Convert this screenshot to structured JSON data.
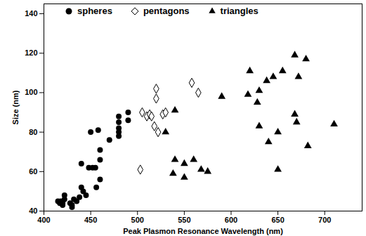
{
  "chart_data": {
    "type": "scatter",
    "x_label": "Peak Plasmon Resonance Wavelength (nm)",
    "y_label": "Size (nm)",
    "xlim": [
      400,
      740
    ],
    "xticks": [
      400,
      450,
      500,
      550,
      600,
      650,
      700
    ],
    "ylim": [
      40,
      145
    ],
    "yticks": [
      40,
      60,
      80,
      100,
      120,
      140
    ],
    "grid": false,
    "legend": "top",
    "series": [
      {
        "name": "spheres",
        "color": "#000000",
        "marker": "circle",
        "x": [
          415,
          417,
          418,
          420,
          420,
          422,
          422,
          428,
          430,
          430,
          432,
          435,
          438,
          440,
          440,
          442,
          445,
          448,
          450,
          452,
          455,
          456,
          458,
          460,
          460,
          460,
          470,
          480,
          480,
          480,
          480,
          480,
          490,
          490
        ],
        "values": [
          45,
          44,
          45,
          44,
          43,
          46,
          48,
          44,
          42,
          43,
          46,
          45,
          47,
          52,
          64,
          50,
          48,
          62,
          80,
          62,
          62,
          52,
          81,
          71,
          66,
          56,
          76,
          78,
          80,
          82,
          85,
          88,
          86,
          90
        ]
      },
      {
        "name": "pentagons",
        "color": "#000000",
        "marker": "open_diamond",
        "x": [
          503,
          505,
          510,
          513,
          515,
          518,
          520,
          520,
          522,
          527,
          530,
          558,
          565
        ],
        "values": [
          61,
          90,
          88,
          89,
          88,
          83,
          97,
          102,
          80,
          89,
          90,
          105,
          100
        ]
      },
      {
        "name": "triangles",
        "color": "#000000",
        "marker": "triangle",
        "x": [
          530,
          538,
          540,
          540,
          550,
          550,
          560,
          568,
          575,
          590,
          618,
          620,
          628,
          630,
          630,
          638,
          640,
          645,
          650,
          650,
          655,
          668,
          668,
          670,
          672,
          680,
          682,
          710
        ],
        "values": [
          80,
          59,
          91,
          66,
          64,
          57,
          66,
          61,
          60,
          98,
          99,
          111,
          95,
          101,
          83,
          106,
          75,
          108,
          61,
          80,
          111,
          119,
          89,
          85,
          108,
          117,
          73,
          84
        ]
      }
    ]
  }
}
